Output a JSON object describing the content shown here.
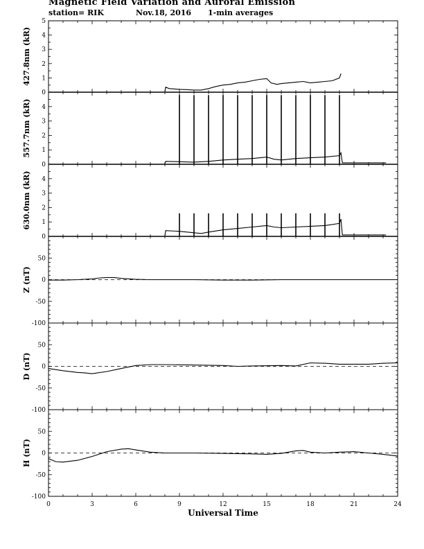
{
  "header": {
    "title": "Magnetic Field Variation and Auroral Emission",
    "station": "station= RIK",
    "date": "Nov.18, 2016",
    "averaging": "1-min averages"
  },
  "chart_data": [
    {
      "type": "line",
      "ylabel": "427.8nm (kR)",
      "ylim": [
        0,
        5
      ],
      "yticks": [
        0,
        1,
        2,
        3,
        4,
        5
      ],
      "series": [
        {
          "x": [
            8.0,
            8.05,
            8.3,
            9.0,
            9.5,
            10.0,
            10.5,
            11.0,
            11.5,
            12.0,
            12.5,
            13.0,
            13.5,
            14.0,
            14.5,
            15.0,
            15.3,
            15.7,
            16.0,
            16.5,
            17.0,
            17.5,
            18.0,
            18.5,
            19.0,
            19.5,
            20.0,
            20.1
          ],
          "y": [
            0.05,
            0.35,
            0.25,
            0.2,
            0.18,
            0.15,
            0.15,
            0.25,
            0.4,
            0.5,
            0.55,
            0.65,
            0.7,
            0.8,
            0.9,
            0.95,
            0.65,
            0.55,
            0.6,
            0.65,
            0.7,
            0.75,
            0.65,
            0.7,
            0.75,
            0.8,
            1.0,
            1.3
          ]
        }
      ]
    },
    {
      "type": "line",
      "ylabel": "557.7nm (kR)",
      "ylim": [
        0,
        5
      ],
      "yticks": [
        0,
        1,
        2,
        3,
        4
      ],
      "series": [
        {
          "x": [
            8.0,
            8.05,
            9.0,
            10.0,
            11.0,
            12.0,
            13.0,
            14.0,
            15.0,
            15.5,
            16.0,
            17.0,
            18.0,
            19.0,
            20.0,
            20.1,
            20.2,
            23.2
          ],
          "y": [
            0.05,
            0.2,
            0.18,
            0.15,
            0.2,
            0.3,
            0.35,
            0.4,
            0.5,
            0.35,
            0.3,
            0.4,
            0.45,
            0.5,
            0.6,
            0.8,
            0.1,
            0.1
          ]
        }
      ],
      "spikes": {
        "x": [
          9,
          10,
          11,
          12,
          13,
          14,
          15,
          16,
          17,
          18,
          19,
          20
        ],
        "y": 4.8
      }
    },
    {
      "type": "line",
      "ylabel": "630.0nm (kR)",
      "ylim": [
        0,
        5
      ],
      "yticks": [
        0,
        1,
        2,
        3,
        4
      ],
      "series": [
        {
          "x": [
            8.0,
            8.05,
            9.0,
            10.0,
            10.5,
            11.0,
            12.0,
            13.0,
            14.0,
            15.0,
            15.5,
            16.0,
            17.0,
            18.0,
            19.0,
            20.0,
            20.1,
            20.2,
            23.2
          ],
          "y": [
            0.05,
            0.4,
            0.35,
            0.25,
            0.2,
            0.3,
            0.45,
            0.55,
            0.65,
            0.75,
            0.65,
            0.6,
            0.65,
            0.7,
            0.75,
            0.9,
            1.2,
            0.1,
            0.1
          ]
        }
      ],
      "spikes": {
        "x": [
          9,
          10,
          11,
          12,
          13,
          14,
          15,
          16,
          17,
          18,
          19,
          20
        ],
        "y": 1.6
      }
    },
    {
      "type": "line",
      "ylabel": "Z (nT)",
      "ylim": [
        -100,
        100
      ],
      "yticks": [
        -100,
        -50,
        0,
        50
      ],
      "series": [
        {
          "x": [
            0,
            1,
            2,
            3,
            3.5,
            4,
            4.5,
            5,
            6,
            7,
            8,
            10,
            12,
            14,
            16,
            18,
            20,
            22,
            24
          ],
          "y": [
            -1,
            -1,
            0,
            2,
            4,
            5,
            5,
            3,
            1,
            0,
            0,
            0,
            -1,
            -1,
            0,
            0,
            0,
            0,
            0
          ]
        }
      ]
    },
    {
      "type": "line",
      "ylabel": "D (nT)",
      "ylim": [
        -100,
        100
      ],
      "yticks": [
        -100,
        -50,
        0,
        50
      ],
      "series": [
        {
          "x": [
            0,
            1,
            2,
            2.5,
            3,
            4,
            5,
            6,
            7,
            8,
            10,
            12,
            13,
            14,
            16,
            17,
            18,
            19,
            20,
            21,
            22,
            23,
            24
          ],
          "y": [
            -5,
            -10,
            -14,
            -15,
            -17,
            -12,
            -5,
            2,
            4,
            4,
            3,
            2,
            0,
            1,
            2,
            1,
            8,
            7,
            5,
            5,
            5,
            7,
            8
          ]
        }
      ]
    },
    {
      "type": "line",
      "ylabel": "H (nT)",
      "ylim": [
        -100,
        100
      ],
      "yticks": [
        -100,
        -50,
        0,
        50
      ],
      "series": [
        {
          "x": [
            0,
            0.5,
            1,
            2,
            3,
            4,
            5,
            5.5,
            6,
            7,
            8,
            10,
            12,
            14,
            15,
            16,
            17,
            17.5,
            18,
            19,
            20,
            21,
            22,
            23,
            24
          ],
          "y": [
            -13,
            -20,
            -21,
            -17,
            -8,
            3,
            9,
            10,
            7,
            2,
            0,
            0,
            -1,
            -2,
            -3,
            -1,
            5,
            6,
            2,
            0,
            2,
            3,
            0,
            -3,
            -7
          ]
        }
      ]
    }
  ],
  "x_axis": {
    "label": "Universal Time",
    "xlim": [
      0,
      24
    ],
    "ticks": [
      0,
      3,
      6,
      9,
      12,
      15,
      18,
      21,
      24
    ]
  }
}
